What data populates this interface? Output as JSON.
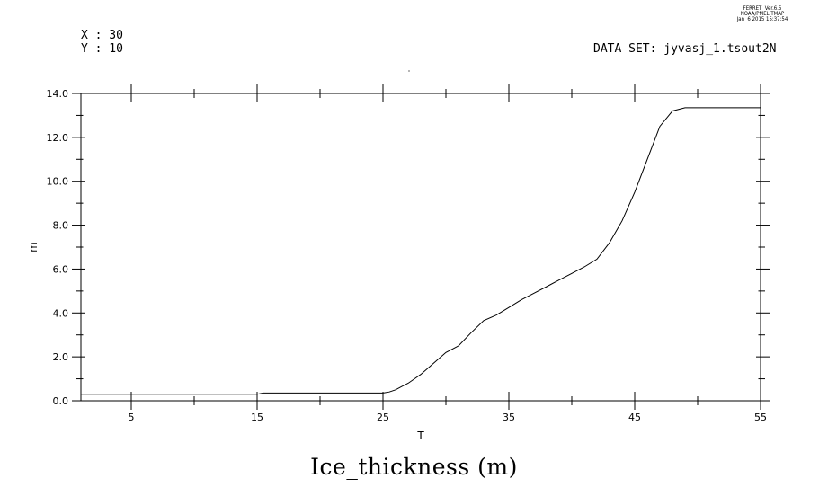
{
  "header": {
    "x_label": "X : 30",
    "y_label": "Y : 10",
    "dataset": "DATA SET: jyvasj_1.tsout2N",
    "stamp": [
      "FERRET  Ver.6.5",
      "NOAA/PMEL TMAP",
      "Jan  6 2015 15:37:54"
    ]
  },
  "chart_data": {
    "type": "line",
    "title": "Ice_thickness (m)",
    "xlabel": "T",
    "ylabel": "m",
    "xlim": [
      1,
      55
    ],
    "ylim": [
      0,
      14
    ],
    "x_ticks": [
      5,
      15,
      25,
      35,
      45,
      55
    ],
    "y_ticks": [
      "0.0",
      "2.0",
      "4.0",
      "6.0",
      "8.0",
      "10.0",
      "12.0",
      "14.0"
    ],
    "x_minor_step": 5,
    "y_minor_step": 1,
    "grid": false,
    "series": [
      {
        "x": [
          1,
          15,
          15.5,
          25,
          25.5,
          26,
          26.5,
          27,
          27.5,
          28,
          29,
          30,
          31,
          32,
          33,
          34,
          35,
          36,
          37,
          38,
          39,
          40,
          41,
          42,
          43,
          44,
          45,
          46,
          47,
          48,
          49,
          50,
          55
        ],
        "y": [
          0.3,
          0.3,
          0.35,
          0.35,
          0.4,
          0.5,
          0.65,
          0.8,
          1.0,
          1.2,
          1.7,
          2.2,
          2.5,
          3.1,
          3.65,
          3.9,
          4.25,
          4.6,
          4.9,
          5.2,
          5.5,
          5.8,
          6.1,
          6.45,
          7.2,
          8.2,
          9.5,
          11.0,
          12.5,
          13.2,
          13.35,
          13.35,
          13.35
        ]
      }
    ]
  }
}
